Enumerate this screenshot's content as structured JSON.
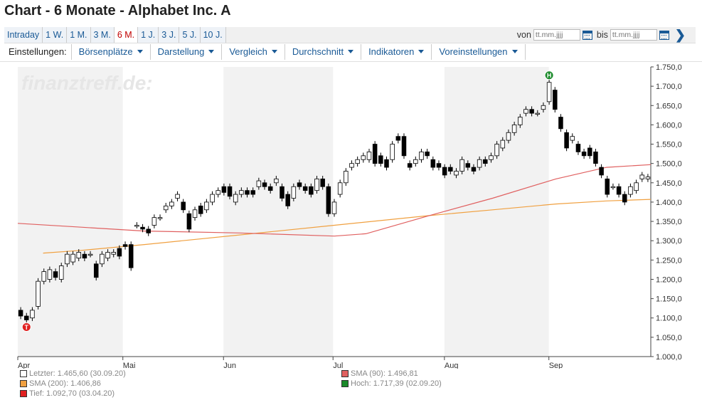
{
  "page": {
    "title": "Chart - 6 Monate - Alphabet Inc. A"
  },
  "tabs": [
    {
      "label": "Intraday",
      "active": false
    },
    {
      "label": "1 W.",
      "active": false
    },
    {
      "label": "1 M.",
      "active": false
    },
    {
      "label": "3 M.",
      "active": false
    },
    {
      "label": "6 M.",
      "active": true
    },
    {
      "label": "1 J.",
      "active": false
    },
    {
      "label": "3 J.",
      "active": false
    },
    {
      "label": "5 J.",
      "active": false
    },
    {
      "label": "10 J.",
      "active": false
    }
  ],
  "daterange": {
    "from_label": "von",
    "to_label": "bis",
    "placeholder": "tt.mm.jjjj"
  },
  "settings": {
    "label": "Einstellungen:",
    "menus": [
      "Börsenplätze",
      "Darstellung",
      "Vergleich",
      "Durchschnitt",
      "Indikatoren",
      "Voreinstellungen"
    ]
  },
  "watermark": "finanztreff.de:",
  "colors": {
    "sma90": "#e06060",
    "sma200": "#f0a040",
    "up": "#ffffff",
    "down": "#000000",
    "high": "#1a8a2a",
    "low": "#e02020",
    "band": "#f2f2f2"
  },
  "legend": {
    "last": "Letzter: 1.465,60 (30.09.20)",
    "sma200": "SMA (200): 1.406,86",
    "low": "Tief: 1.092,70 (03.04.20)",
    "sma90": "SMA (90): 1.496,81",
    "high": "Hoch: 1.717,39 (02.09.20)"
  },
  "chart_data": {
    "type": "candlestick",
    "y_ticks": [
      "1.000,0",
      "1.050,0",
      "1.100,0",
      "1.150,0",
      "1.200,0",
      "1.250,0",
      "1.300,0",
      "1.350,0",
      "1.400,0",
      "1.450,0",
      "1.500,0",
      "1.550,0",
      "1.600,0",
      "1.650,0",
      "1.700,0",
      "1.750,0"
    ],
    "ylim": [
      1000,
      1750
    ],
    "x_ticks": [
      "Apr",
      "Mai",
      "Jun",
      "Jul",
      "Aug",
      "Sep"
    ],
    "markers": {
      "high": "H",
      "low": "T"
    },
    "candles": [
      [
        1120,
        1105
      ],
      [
        1105,
        1095
      ],
      [
        1100,
        1120
      ],
      [
        1130,
        1195
      ],
      [
        1195,
        1220
      ],
      [
        1200,
        1225
      ],
      [
        1220,
        1205
      ],
      [
        1200,
        1235
      ],
      [
        1240,
        1265
      ],
      [
        1245,
        1265
      ],
      [
        1255,
        1270
      ],
      [
        1265,
        1255
      ],
      [
        1265,
        1265
      ],
      [
        1240,
        1205
      ],
      [
        1240,
        1265
      ],
      [
        1255,
        1270
      ],
      [
        1265,
        1270
      ],
      [
        1280,
        1260
      ],
      [
        1290,
        1285
      ],
      [
        1290,
        1230
      ],
      [
        1340,
        1340
      ],
      [
        1335,
        1330
      ],
      [
        1330,
        1320
      ],
      [
        1340,
        1360
      ],
      [
        1360,
        1360
      ],
      [
        1380,
        1390
      ],
      [
        1390,
        1400
      ],
      [
        1410,
        1420
      ],
      [
        1400,
        1380
      ],
      [
        1370,
        1330
      ],
      [
        1360,
        1380
      ],
      [
        1390,
        1370
      ],
      [
        1380,
        1400
      ],
      [
        1400,
        1420
      ],
      [
        1420,
        1430
      ],
      [
        1440,
        1425
      ],
      [
        1440,
        1415
      ],
      [
        1400,
        1420
      ],
      [
        1420,
        1430
      ],
      [
        1430,
        1420
      ],
      [
        1430,
        1420
      ],
      [
        1440,
        1455
      ],
      [
        1450,
        1440
      ],
      [
        1440,
        1430
      ],
      [
        1450,
        1460
      ],
      [
        1440,
        1410
      ],
      [
        1420,
        1390
      ],
      [
        1410,
        1440
      ],
      [
        1450,
        1440
      ],
      [
        1440,
        1430
      ],
      [
        1440,
        1420
      ],
      [
        1430,
        1460
      ],
      [
        1460,
        1440
      ],
      [
        1440,
        1370
      ],
      [
        1370,
        1400
      ],
      [
        1420,
        1450
      ],
      [
        1450,
        1480
      ],
      [
        1490,
        1500
      ],
      [
        1500,
        1510
      ],
      [
        1510,
        1520
      ],
      [
        1510,
        1530
      ],
      [
        1550,
        1500
      ],
      [
        1520,
        1500
      ],
      [
        1510,
        1490
      ],
      [
        1510,
        1550
      ],
      [
        1570,
        1560
      ],
      [
        1570,
        1520
      ],
      [
        1500,
        1490
      ],
      [
        1500,
        1510
      ],
      [
        1510,
        1530
      ],
      [
        1530,
        1520
      ],
      [
        1510,
        1490
      ],
      [
        1500,
        1490
      ],
      [
        1490,
        1470
      ],
      [
        1490,
        1480
      ],
      [
        1470,
        1480
      ],
      [
        1480,
        1510
      ],
      [
        1500,
        1490
      ],
      [
        1490,
        1480
      ],
      [
        1490,
        1510
      ],
      [
        1510,
        1500
      ],
      [
        1510,
        1520
      ],
      [
        1520,
        1550
      ],
      [
        1540,
        1560
      ],
      [
        1560,
        1580
      ],
      [
        1580,
        1600
      ],
      [
        1600,
        1620
      ],
      [
        1630,
        1640
      ],
      [
        1640,
        1630
      ],
      [
        1630,
        1630
      ],
      [
        1640,
        1650
      ],
      [
        1660,
        1710
      ],
      [
        1690,
        1640
      ],
      [
        1620,
        1590
      ],
      [
        1580,
        1540
      ],
      [
        1560,
        1570
      ],
      [
        1550,
        1530
      ],
      [
        1530,
        1520
      ],
      [
        1540,
        1520
      ],
      [
        1530,
        1500
      ],
      [
        1490,
        1470
      ],
      [
        1460,
        1420
      ],
      [
        1440,
        1440
      ],
      [
        1440,
        1420
      ],
      [
        1420,
        1400
      ],
      [
        1420,
        1440
      ],
      [
        1430,
        1450
      ],
      [
        1460,
        1470
      ],
      [
        1460,
        1465
      ]
    ],
    "sma90": [
      [
        0,
        1345
      ],
      [
        0.1,
        1335
      ],
      [
        0.2,
        1325
      ],
      [
        0.35,
        1320
      ],
      [
        0.5,
        1312
      ],
      [
        0.55,
        1318
      ],
      [
        0.65,
        1365
      ],
      [
        0.75,
        1410
      ],
      [
        0.85,
        1460
      ],
      [
        0.93,
        1490
      ],
      [
        1,
        1497
      ]
    ],
    "sma200": [
      [
        0.04,
        1268
      ],
      [
        0.1,
        1275
      ],
      [
        0.2,
        1290
      ],
      [
        0.35,
        1315
      ],
      [
        0.5,
        1340
      ],
      [
        0.65,
        1365
      ],
      [
        0.75,
        1380
      ],
      [
        0.85,
        1395
      ],
      [
        0.93,
        1403
      ],
      [
        1,
        1407
      ]
    ]
  }
}
